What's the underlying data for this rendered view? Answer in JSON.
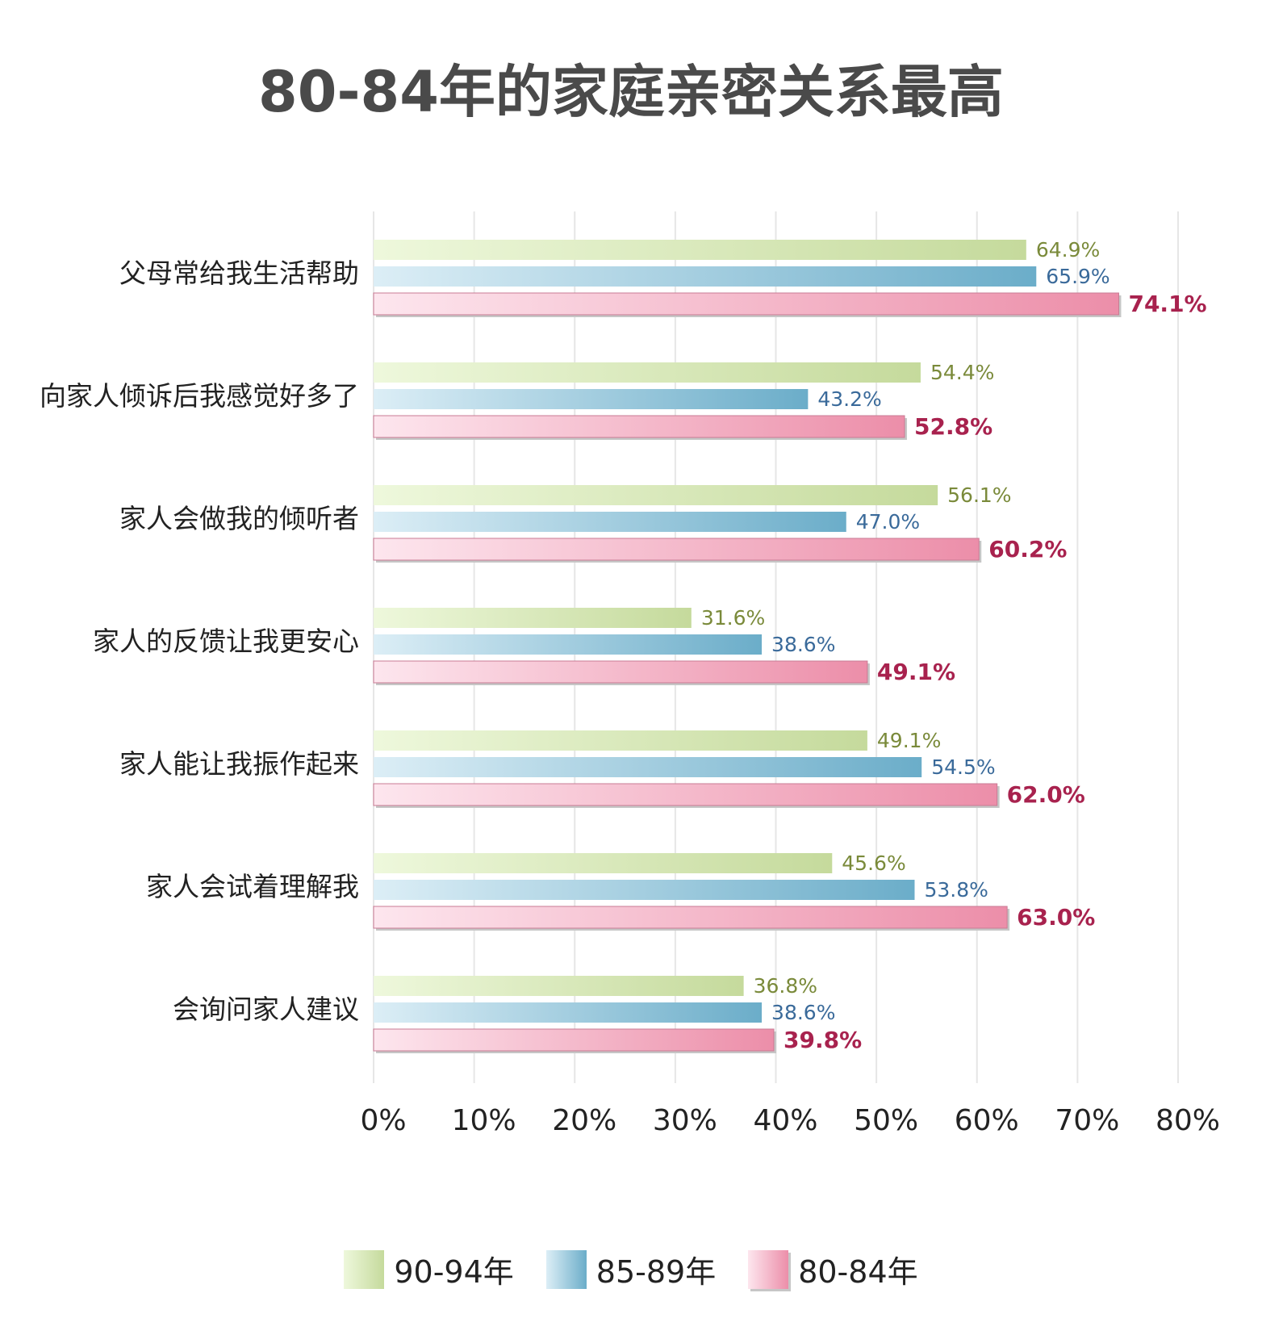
{
  "chart_data": {
    "type": "bar",
    "orientation": "horizontal",
    "title": "80-84年的家庭亲密关系最高",
    "categories": [
      "父母常给我生活帮助",
      "向家人倾诉后我感觉好多了",
      "家人会做我的倾听者",
      "家人的反馈让我更安心",
      "家人能让我振作起来",
      "家人会试着理解我",
      "会询问家人建议"
    ],
    "series": [
      {
        "name": "90-94年",
        "values": [
          64.9,
          54.4,
          56.1,
          31.6,
          49.1,
          45.6,
          36.8
        ],
        "labels": [
          "64.9%",
          "54.4%",
          "56.1%",
          "31.6%",
          "49.1%",
          "45.6%",
          "36.8%"
        ],
        "color_start": "#eef8dc",
        "color_end": "#c5da9c",
        "label_color": "#7a8a3a"
      },
      {
        "name": "85-89年",
        "values": [
          65.9,
          43.2,
          47.0,
          38.6,
          54.5,
          53.8,
          38.6
        ],
        "labels": [
          "65.9%",
          "43.2%",
          "47.0%",
          "38.6%",
          "54.5%",
          "53.8%",
          "38.6%"
        ],
        "color_start": "#dceef6",
        "color_end": "#6badc9",
        "label_color": "#3a6a9a"
      },
      {
        "name": "80-84年",
        "values": [
          74.1,
          52.8,
          60.2,
          49.1,
          62.0,
          63.0,
          39.8
        ],
        "labels": [
          "74.1%",
          "52.8%",
          "60.2%",
          "49.1%",
          "62.0%",
          "63.0%",
          "39.8%"
        ],
        "color_start": "#fde6ee",
        "color_end": "#ec8ea9",
        "label_color": "#a8224e"
      }
    ],
    "xlim": [
      0,
      80
    ],
    "xticks": [
      0,
      10,
      20,
      30,
      40,
      50,
      60,
      70,
      80
    ],
    "xtick_labels": [
      "0%",
      "10%",
      "20%",
      "30%",
      "40%",
      "50%",
      "60%",
      "70%",
      "80%"
    ],
    "grid": "vertical",
    "legend": "bottom-center"
  }
}
